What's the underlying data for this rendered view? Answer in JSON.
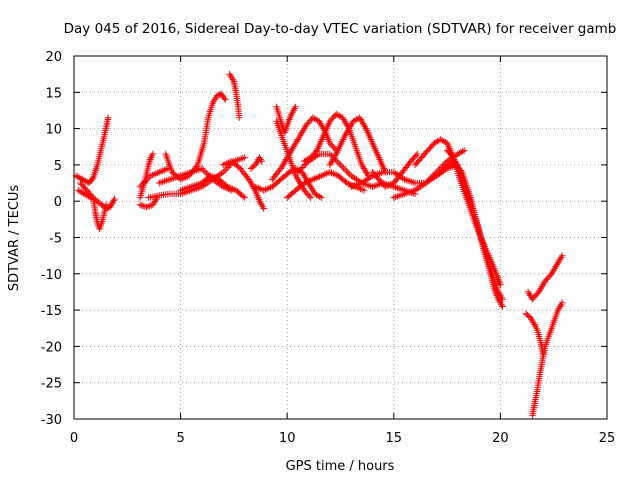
{
  "chart_data": {
    "type": "scatter",
    "title": "Day 045 of 2016, Sidereal Day-to-day VTEC variation (SDTVAR) for receiver gamb",
    "xlabel": "GPS time / hours",
    "ylabel": "SDTVAR / TECUs",
    "xlim": [
      0,
      25
    ],
    "ylim": [
      -30,
      20
    ],
    "xticks": [
      "0",
      "5",
      "10",
      "15",
      "20",
      "25"
    ],
    "yticks": [
      "-30",
      "-25",
      "-20",
      "-15",
      "-10",
      "-5",
      "0",
      "5",
      "10",
      "15",
      "20"
    ],
    "grid": true,
    "marker": "+",
    "color": "#ff0000",
    "series": [
      {
        "points": [
          [
            0.1,
            3.5
          ],
          [
            0.4,
            3.0
          ],
          [
            0.7,
            2.5
          ],
          [
            0.9,
            3.2
          ],
          [
            1.1,
            5.0
          ],
          [
            1.3,
            7.5
          ],
          [
            1.5,
            10.0
          ],
          [
            1.6,
            11.5
          ]
        ]
      },
      {
        "points": [
          [
            0.2,
            1.5
          ],
          [
            0.6,
            0.8
          ],
          [
            1.0,
            0.2
          ],
          [
            1.3,
            -0.5
          ],
          [
            1.5,
            -1.0
          ],
          [
            1.7,
            -0.8
          ],
          [
            1.9,
            0.3
          ]
        ]
      },
      {
        "points": [
          [
            0.3,
            2.5
          ],
          [
            0.6,
            1.5
          ],
          [
            0.9,
            0.5
          ],
          [
            1.0,
            -1.5
          ],
          [
            1.1,
            -3.0
          ],
          [
            1.2,
            -3.8
          ],
          [
            1.35,
            -2.5
          ],
          [
            1.5,
            -0.5
          ]
        ]
      },
      {
        "points": [
          [
            3.1,
            0.5
          ],
          [
            3.3,
            2.5
          ],
          [
            3.5,
            5.0
          ],
          [
            3.6,
            6.0
          ],
          [
            3.7,
            6.5
          ]
        ]
      },
      {
        "points": [
          [
            3.1,
            -0.5
          ],
          [
            3.4,
            -0.8
          ],
          [
            3.7,
            -0.5
          ],
          [
            3.9,
            0.5
          ]
        ]
      },
      {
        "points": [
          [
            3.1,
            2.0
          ],
          [
            3.6,
            3.5
          ],
          [
            4.0,
            4.0
          ],
          [
            4.4,
            4.5
          ]
        ]
      },
      {
        "points": [
          [
            4.3,
            6.5
          ],
          [
            4.6,
            4.0
          ],
          [
            5.0,
            3.0
          ],
          [
            5.4,
            3.5
          ],
          [
            5.8,
            5.0
          ],
          [
            6.1,
            8.0
          ],
          [
            6.3,
            11.5
          ],
          [
            6.5,
            13.5
          ],
          [
            6.7,
            14.5
          ],
          [
            6.9,
            14.8
          ],
          [
            7.1,
            14.0
          ]
        ]
      },
      {
        "points": [
          [
            3.5,
            0.5
          ],
          [
            4.0,
            0.8
          ],
          [
            4.5,
            1.0
          ],
          [
            5.0,
            1.0
          ],
          [
            5.5,
            1.5
          ],
          [
            6.0,
            2.0
          ],
          [
            6.5,
            3.0
          ],
          [
            7.0,
            4.0
          ],
          [
            7.5,
            5.5
          ],
          [
            8.0,
            6.0
          ]
        ]
      },
      {
        "points": [
          [
            5.0,
            1.5
          ],
          [
            5.5,
            2.0
          ],
          [
            6.0,
            2.5
          ],
          [
            6.4,
            3.5
          ],
          [
            6.8,
            3.0
          ],
          [
            7.2,
            2.0
          ],
          [
            7.6,
            1.5
          ],
          [
            8.0,
            0.5
          ]
        ]
      },
      {
        "points": [
          [
            4.0,
            2.5
          ],
          [
            4.5,
            3.0
          ],
          [
            5.0,
            3.5
          ],
          [
            5.5,
            4.0
          ],
          [
            6.0,
            4.5
          ],
          [
            6.5,
            3.0
          ],
          [
            7.0,
            2.0
          ],
          [
            7.4,
            1.5
          ]
        ]
      },
      {
        "points": [
          [
            7.3,
            17.5
          ],
          [
            7.5,
            16.5
          ],
          [
            7.6,
            15.0
          ],
          [
            7.7,
            13.0
          ],
          [
            7.75,
            11.5
          ]
        ]
      },
      {
        "points": [
          [
            7.0,
            5.0
          ],
          [
            7.4,
            5.5
          ],
          [
            7.8,
            4.5
          ],
          [
            8.2,
            3.0
          ],
          [
            8.5,
            1.5
          ],
          [
            8.7,
            0.0
          ],
          [
            8.9,
            -1.0
          ]
        ]
      },
      {
        "points": [
          [
            8.3,
            4.5
          ],
          [
            8.5,
            5.0
          ],
          [
            8.7,
            6.0
          ],
          [
            8.8,
            5.5
          ]
        ]
      },
      {
        "points": [
          [
            8.5,
            2.0
          ],
          [
            8.9,
            1.5
          ],
          [
            9.3,
            2.0
          ],
          [
            9.7,
            3.0
          ],
          [
            10.1,
            4.0
          ],
          [
            10.4,
            4.5
          ],
          [
            10.7,
            4.0
          ],
          [
            11.0,
            2.5
          ],
          [
            11.3,
            1.0
          ],
          [
            11.6,
            0.5
          ]
        ]
      },
      {
        "points": [
          [
            9.5,
            13.0
          ],
          [
            9.7,
            11.0
          ],
          [
            9.9,
            9.5
          ],
          [
            10.0,
            10.5
          ],
          [
            10.2,
            12.0
          ],
          [
            10.4,
            13.0
          ]
        ]
      },
      {
        "points": [
          [
            9.5,
            11.0
          ],
          [
            9.8,
            8.5
          ],
          [
            10.1,
            6.0
          ],
          [
            10.4,
            3.5
          ],
          [
            10.8,
            1.5
          ],
          [
            11.1,
            0.5
          ]
        ]
      },
      {
        "points": [
          [
            9.3,
            3.0
          ],
          [
            9.7,
            4.5
          ],
          [
            10.1,
            6.5
          ],
          [
            10.5,
            8.5
          ],
          [
            10.9,
            10.5
          ],
          [
            11.2,
            11.5
          ],
          [
            11.5,
            11.0
          ],
          [
            11.8,
            9.5
          ],
          [
            12.0,
            8.0
          ],
          [
            12.3,
            7.0
          ]
        ]
      },
      {
        "points": [
          [
            10.0,
            0.5
          ],
          [
            10.4,
            1.5
          ],
          [
            10.8,
            2.5
          ],
          [
            11.2,
            3.0
          ],
          [
            11.6,
            3.5
          ],
          [
            12.0,
            4.0
          ],
          [
            12.4,
            3.5
          ],
          [
            12.8,
            2.5
          ],
          [
            13.2,
            2.0
          ],
          [
            13.6,
            1.5
          ]
        ]
      },
      {
        "points": [
          [
            10.8,
            5.5
          ],
          [
            11.1,
            6.0
          ],
          [
            11.4,
            7.0
          ],
          [
            11.7,
            9.0
          ],
          [
            12.0,
            11.0
          ],
          [
            12.3,
            12.0
          ],
          [
            12.6,
            11.5
          ],
          [
            12.9,
            10.0
          ],
          [
            13.2,
            7.5
          ],
          [
            13.5,
            5.0
          ],
          [
            13.8,
            3.5
          ]
        ]
      },
      {
        "points": [
          [
            12.0,
            5.0
          ],
          [
            12.3,
            6.5
          ],
          [
            12.7,
            9.0
          ],
          [
            13.1,
            11.0
          ],
          [
            13.4,
            11.5
          ],
          [
            13.7,
            10.0
          ],
          [
            14.0,
            8.0
          ],
          [
            14.3,
            6.0
          ],
          [
            14.6,
            4.0
          ]
        ]
      },
      {
        "points": [
          [
            10.5,
            4.0
          ],
          [
            11.0,
            5.5
          ],
          [
            11.5,
            6.5
          ],
          [
            12.0,
            6.5
          ],
          [
            12.5,
            5.0
          ],
          [
            13.0,
            3.5
          ],
          [
            13.5,
            2.5
          ],
          [
            14.0,
            2.0
          ],
          [
            14.5,
            2.5
          ],
          [
            15.0,
            2.0
          ],
          [
            15.5,
            1.5
          ],
          [
            16.0,
            1.0
          ]
        ]
      },
      {
        "points": [
          [
            13.0,
            2.0
          ],
          [
            13.5,
            2.5
          ],
          [
            14.0,
            3.5
          ],
          [
            14.5,
            4.0
          ],
          [
            15.0,
            4.0
          ],
          [
            15.5,
            3.0
          ],
          [
            16.0,
            2.5
          ],
          [
            16.5,
            2.5
          ],
          [
            17.0,
            3.5
          ],
          [
            17.5,
            4.5
          ],
          [
            18.0,
            5.0
          ]
        ]
      },
      {
        "points": [
          [
            14.0,
            4.0
          ],
          [
            14.3,
            3.0
          ],
          [
            14.6,
            2.0
          ],
          [
            15.0,
            2.5
          ],
          [
            15.4,
            4.0
          ],
          [
            15.8,
            5.5
          ],
          [
            16.1,
            6.5
          ]
        ]
      },
      {
        "points": [
          [
            15.0,
            0.5
          ],
          [
            15.5,
            1.0
          ],
          [
            16.0,
            1.5
          ],
          [
            16.5,
            2.5
          ],
          [
            17.0,
            4.0
          ],
          [
            17.5,
            5.5
          ],
          [
            18.0,
            6.5
          ],
          [
            18.3,
            7.0
          ]
        ]
      },
      {
        "points": [
          [
            16.0,
            5.0
          ],
          [
            16.3,
            6.0
          ],
          [
            16.6,
            7.0
          ],
          [
            16.9,
            8.0
          ],
          [
            17.2,
            8.5
          ],
          [
            17.5,
            8.0
          ],
          [
            17.8,
            6.0
          ],
          [
            18.1,
            3.0
          ],
          [
            18.4,
            0.5
          ],
          [
            18.7,
            -2.0
          ],
          [
            19.0,
            -4.5
          ],
          [
            19.3,
            -6.5
          ],
          [
            19.6,
            -8.5
          ],
          [
            19.8,
            -10.0
          ],
          [
            20.0,
            -11.5
          ]
        ]
      },
      {
        "points": [
          [
            17.0,
            3.5
          ],
          [
            17.4,
            4.5
          ],
          [
            17.8,
            5.5
          ],
          [
            18.2,
            4.0
          ],
          [
            18.6,
            0.5
          ],
          [
            18.9,
            -3.0
          ],
          [
            19.2,
            -6.5
          ],
          [
            19.5,
            -9.5
          ],
          [
            19.7,
            -12.0
          ],
          [
            19.9,
            -13.5
          ],
          [
            20.1,
            -14.5
          ]
        ]
      },
      {
        "points": [
          [
            17.5,
            7.0
          ],
          [
            17.8,
            6.0
          ],
          [
            18.1,
            4.0
          ],
          [
            18.4,
            1.5
          ],
          [
            18.7,
            -1.0
          ],
          [
            19.0,
            -4.0
          ],
          [
            19.3,
            -7.0
          ],
          [
            19.6,
            -10.0
          ],
          [
            19.9,
            -12.5
          ],
          [
            20.1,
            -13.5
          ]
        ]
      },
      {
        "points": [
          [
            21.3,
            -12.5
          ],
          [
            21.5,
            -13.5
          ],
          [
            21.8,
            -12.5
          ],
          [
            22.1,
            -11.0
          ],
          [
            22.4,
            -10.0
          ],
          [
            22.7,
            -8.5
          ],
          [
            22.9,
            -7.5
          ]
        ]
      },
      {
        "points": [
          [
            21.2,
            -15.5
          ],
          [
            21.4,
            -16.0
          ],
          [
            21.7,
            -17.5
          ],
          [
            21.9,
            -19.5
          ],
          [
            22.0,
            -21.0
          ]
        ]
      },
      {
        "points": [
          [
            21.5,
            -29.5
          ],
          [
            21.7,
            -26.5
          ],
          [
            21.9,
            -23.0
          ],
          [
            22.1,
            -20.0
          ],
          [
            22.4,
            -17.5
          ],
          [
            22.7,
            -15.0
          ],
          [
            22.9,
            -14.0
          ]
        ]
      }
    ]
  }
}
